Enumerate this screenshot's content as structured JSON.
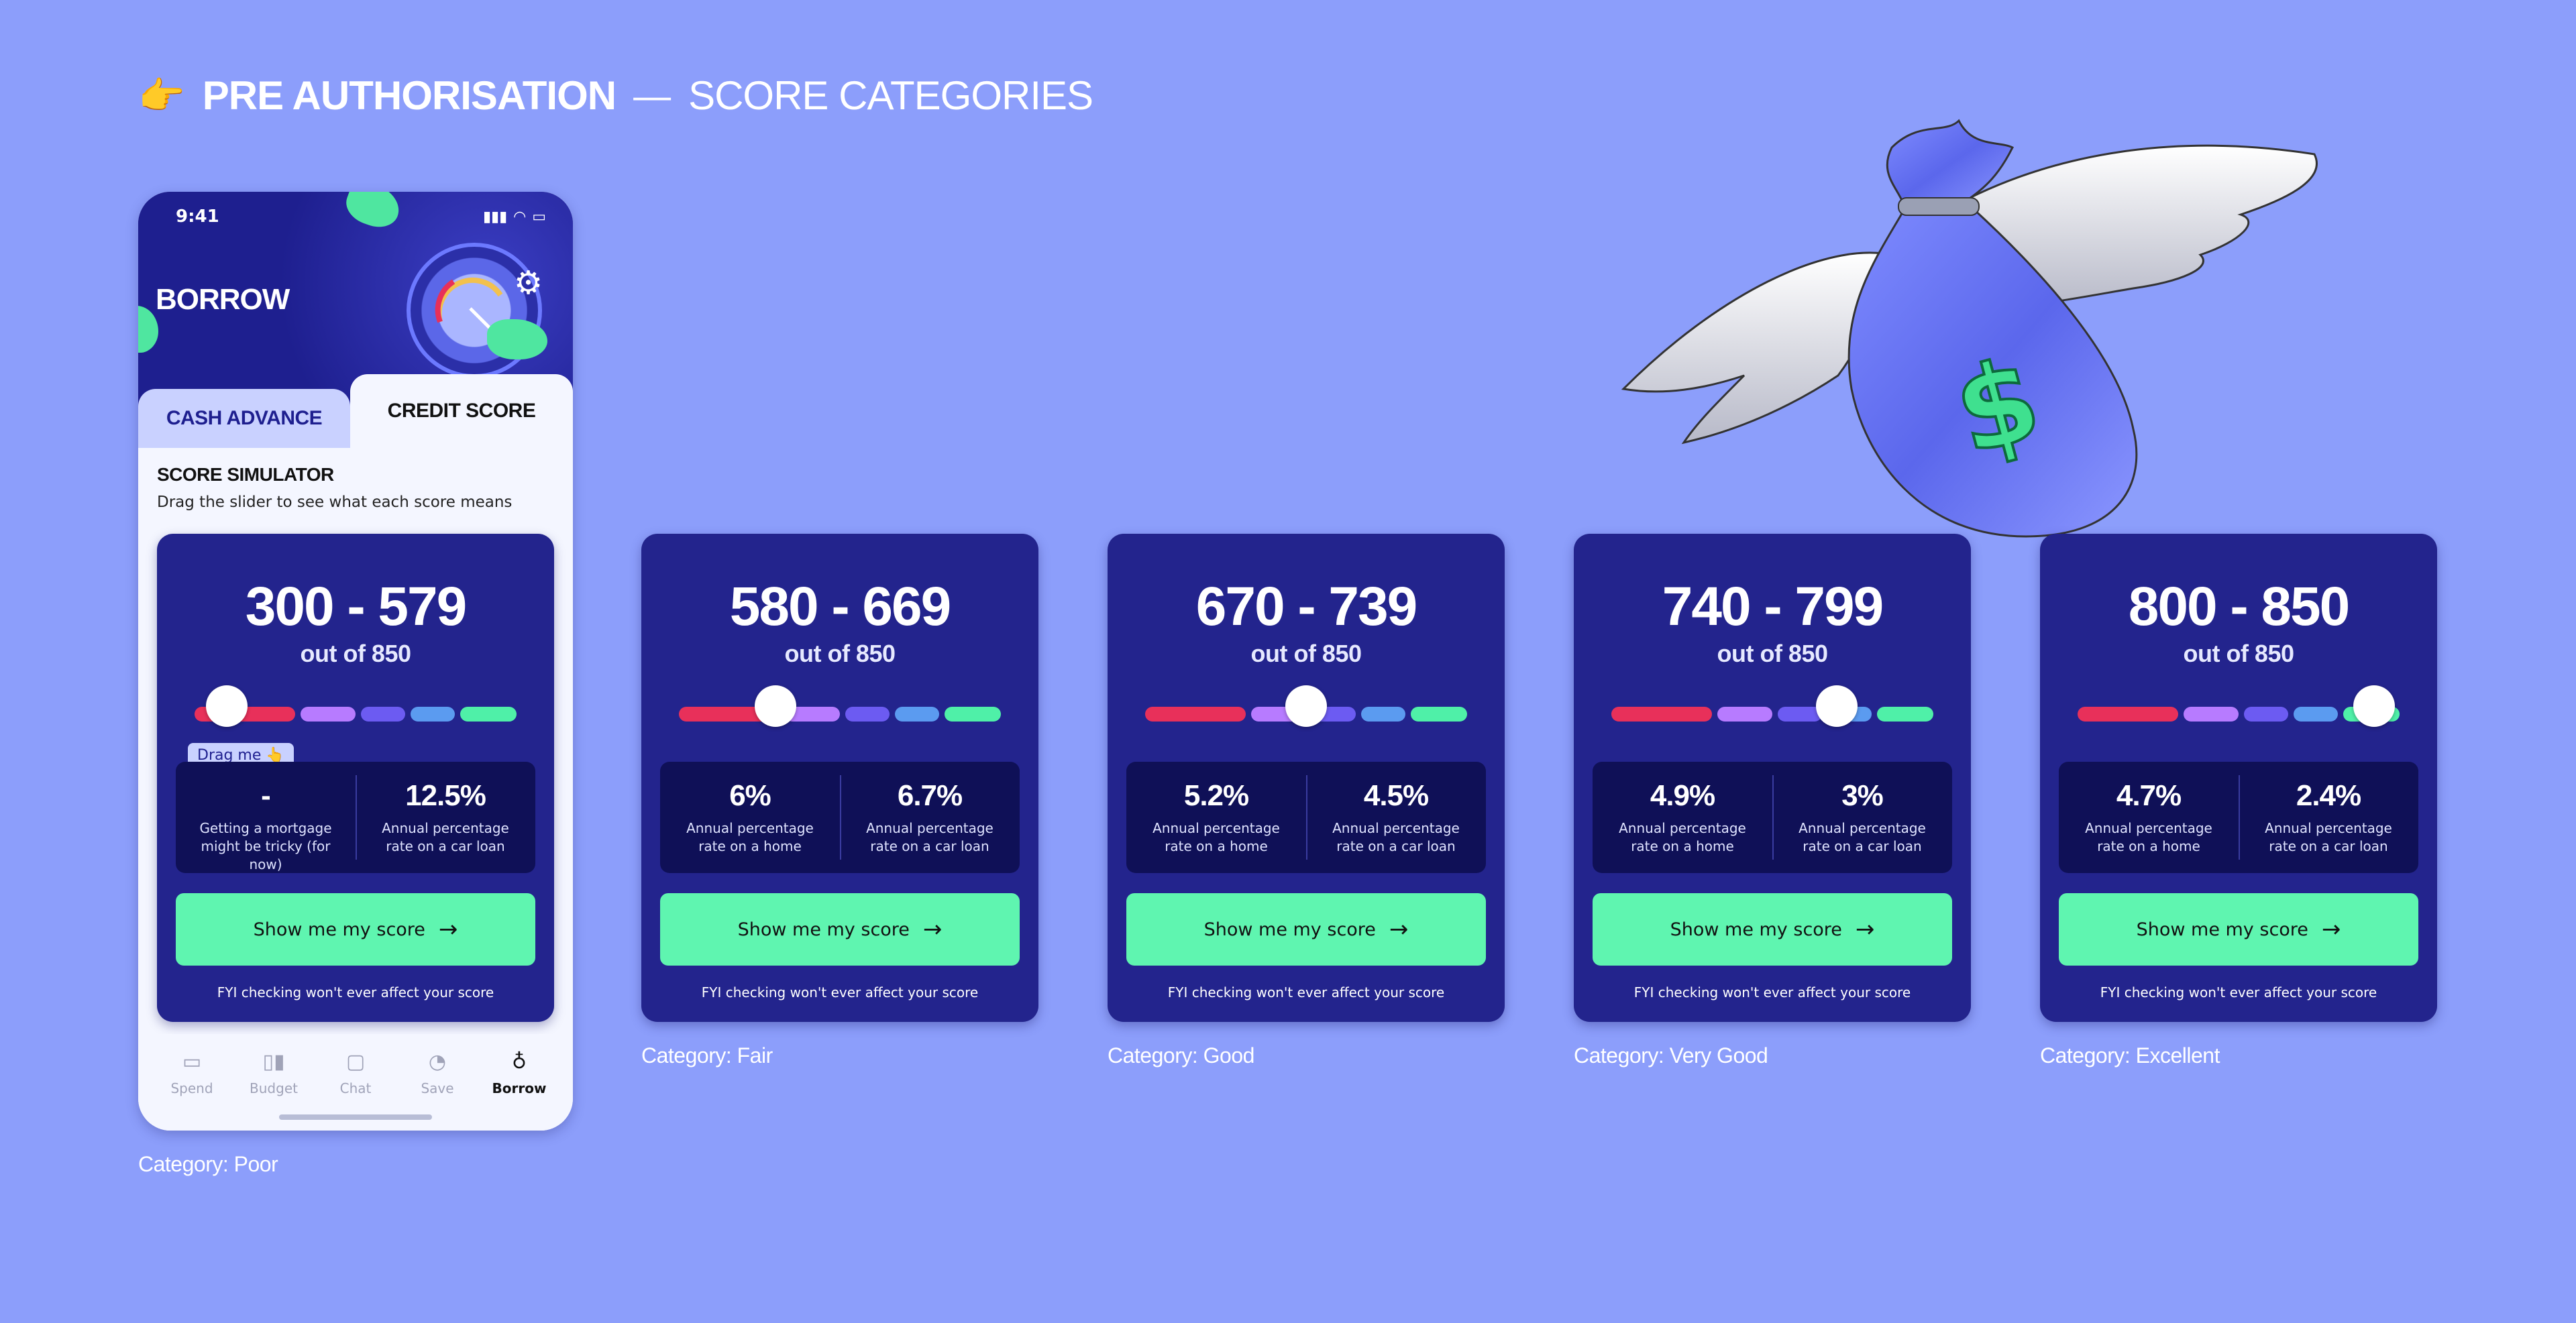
{
  "header": {
    "pointer_emoji": "👉",
    "title_strong": "PRE AUTHORISATION",
    "dash": "—",
    "title_light": "SCORE CATEGORIES"
  },
  "phone": {
    "status": {
      "time": "9:41"
    },
    "page_title": "BORROW",
    "tabs": {
      "cash_advance": "CASH ADVANCE",
      "credit_score": "CREDIT SCORE"
    },
    "simulator": {
      "title": "SCORE SIMULATOR",
      "subtitle": "Drag the slider to see what each score means"
    },
    "drag_tip": "Drag me 👆",
    "nav": [
      {
        "label": "Spend",
        "icon": "card-icon"
      },
      {
        "label": "Budget",
        "icon": "chart-icon"
      },
      {
        "label": "Chat",
        "icon": "chat-icon"
      },
      {
        "label": "Save",
        "icon": "piggy-icon"
      },
      {
        "label": "Borrow",
        "icon": "moneybag-icon"
      }
    ]
  },
  "common": {
    "out_of": "out of 850",
    "cta": "Show me my score",
    "arrow": "→",
    "fyi": "FYI checking won't ever affect your score"
  },
  "slider_colors": [
    "#e8305a",
    "#b77bff",
    "#6c5bf2",
    "#5b9bf0",
    "#4ff0a8"
  ],
  "cards": [
    {
      "range": "300 - 579",
      "knob_position": 0.1,
      "stat_left_value": "-",
      "stat_left_desc": "Getting a mortgage might be tricky (for now)",
      "stat_right_value": "12.5%",
      "stat_right_desc": "Annual percentage rate on a car loan",
      "category": "Category: Poor"
    },
    {
      "range": "580 - 669",
      "knob_position": 0.3,
      "stat_left_value": "6%",
      "stat_left_desc": "Annual percentage rate on a home",
      "stat_right_value": "6.7%",
      "stat_right_desc": "Annual percentage rate on a car loan",
      "category": "Category: Fair"
    },
    {
      "range": "670 - 739",
      "knob_position": 0.5,
      "stat_left_value": "5.2%",
      "stat_left_desc": "Annual percentage rate on a home",
      "stat_right_value": "4.5%",
      "stat_right_desc": "Annual percentage rate on a car loan",
      "category": "Category: Good"
    },
    {
      "range": "740 - 799",
      "knob_position": 0.7,
      "stat_left_value": "4.9%",
      "stat_left_desc": "Annual percentage rate on a home",
      "stat_right_value": "3%",
      "stat_right_desc": "Annual percentage rate on a car loan",
      "category": "Category: Very Good"
    },
    {
      "range": "800 - 850",
      "knob_position": 0.92,
      "stat_left_value": "4.7%",
      "stat_left_desc": "Annual percentage rate on a home",
      "stat_right_value": "2.4%",
      "stat_right_desc": "Annual percentage rate on a car loan",
      "category": "Category: Excellent"
    }
  ]
}
